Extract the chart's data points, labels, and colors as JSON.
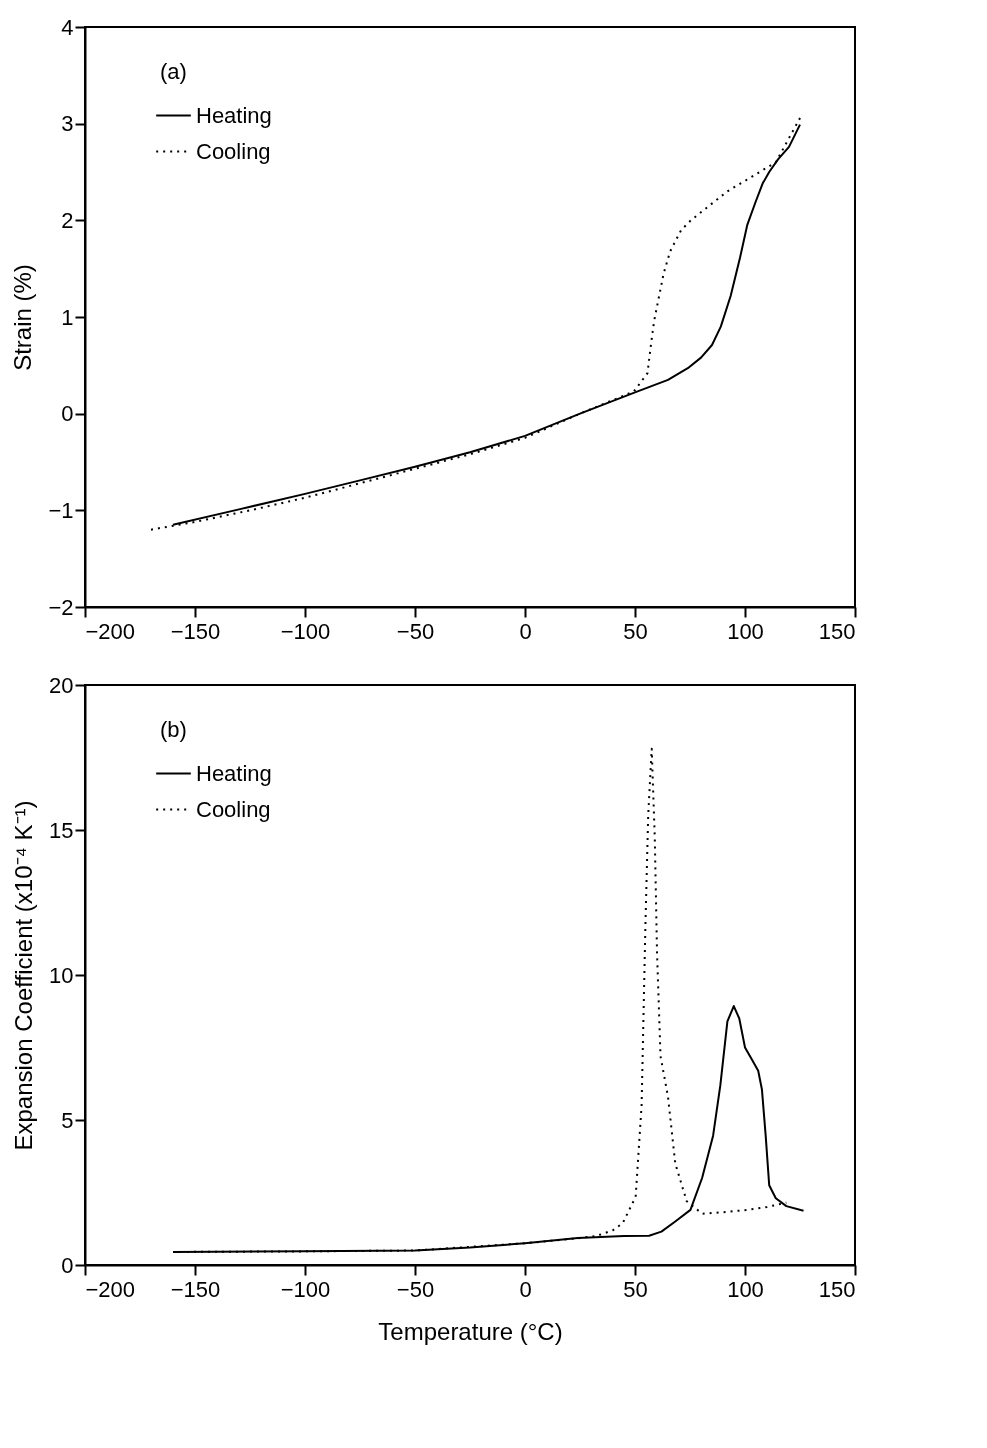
{
  "chart_data": [
    {
      "type": "line",
      "annotations": [
        "(a)"
      ],
      "ylabel": "Strain (%)",
      "xlim": [
        -200,
        150
      ],
      "xticks": [
        -200,
        -150,
        -100,
        -50,
        0,
        50,
        100,
        150
      ],
      "ylim": [
        -2,
        4
      ],
      "yticks": [
        -2,
        -1,
        0,
        1,
        2,
        3,
        4
      ],
      "legend": "top left",
      "series": [
        {
          "name": "Heating",
          "color": "#000000",
          "line_style": "solid",
          "x": [
            -160,
            -130,
            -100,
            -75,
            -50,
            -25,
            0,
            25,
            50,
            65,
            74,
            80,
            85,
            89,
            93.5,
            97.7,
            101,
            104.8,
            108,
            111,
            115,
            120,
            125
          ],
          "values": [
            -1.15,
            -0.99,
            -0.83,
            -0.69,
            -0.55,
            -0.4,
            -0.23,
            0.0,
            0.22,
            0.35,
            0.47,
            0.58,
            0.71,
            0.9,
            1.22,
            1.61,
            1.95,
            2.19,
            2.38,
            2.5,
            2.63,
            2.76,
            2.99
          ]
        },
        {
          "name": "Cooling",
          "color": "#000000",
          "line_style": "dotted",
          "x": [
            -170,
            -150,
            -125,
            -100,
            -75,
            -50,
            -25,
            0,
            25,
            49.5,
            55.7,
            57,
            58.7,
            61,
            63,
            66,
            71,
            75.4,
            82,
            92,
            103,
            114,
            126
          ],
          "values": [
            -1.2,
            -1.12,
            -1.0,
            -0.87,
            -0.72,
            -0.57,
            -0.42,
            -0.25,
            0.0,
            0.23,
            0.42,
            0.67,
            0.96,
            1.22,
            1.45,
            1.68,
            1.9,
            2.0,
            2.12,
            2.3,
            2.45,
            2.6,
            3.1
          ]
        }
      ]
    },
    {
      "type": "line",
      "annotations": [
        "(b)"
      ],
      "xlabel": "Temperature (°C)",
      "ylabel": "Expansion Coefficient (x10⁻⁴ K⁻¹)",
      "xlim": [
        -200,
        150
      ],
      "xticks": [
        -200,
        -150,
        -100,
        -50,
        0,
        50,
        100,
        150
      ],
      "ylim": [
        0,
        20
      ],
      "yticks": [
        0,
        5,
        10,
        15,
        20
      ],
      "legend": "top left",
      "series": [
        {
          "name": "Heating",
          "color": "#000000",
          "line_style": "solid",
          "x": [
            -160,
            -100,
            -50,
            -25,
            0,
            24,
            45,
            56.4,
            62,
            68.3,
            75.2,
            80.5,
            85.5,
            88.8,
            92,
            94.9,
            97.4,
            100,
            103,
            106,
            107.7,
            109.4,
            111,
            114,
            118.8,
            126.6
          ],
          "values": [
            0.45,
            0.47,
            0.5,
            0.6,
            0.75,
            0.93,
            1.0,
            1.01,
            1.15,
            1.5,
            1.9,
            3.0,
            4.46,
            6.2,
            8.4,
            8.93,
            8.5,
            7.5,
            7.1,
            6.7,
            6.05,
            4.46,
            2.75,
            2.3,
            2.03,
            1.87
          ]
        },
        {
          "name": "Cooling",
          "color": "#000000",
          "line_style": "dotted",
          "x": [
            -160,
            -100,
            -50,
            0,
            25,
            32.5,
            40,
            44.4,
            50.3,
            53,
            54.7,
            56,
            57.6,
            59,
            60,
            61.6,
            65,
            68.3,
            73.5,
            80.5,
            90,
            101,
            110,
            118.8
          ],
          "values": [
            0.45,
            0.47,
            0.5,
            0.75,
            0.93,
            1.0,
            1.2,
            1.44,
            2.35,
            5.5,
            11.6,
            15.5,
            17.8,
            14.7,
            10.8,
            7.2,
            5.8,
            3.5,
            2.2,
            1.77,
            1.82,
            1.9,
            2.0,
            2.15
          ]
        }
      ]
    }
  ]
}
